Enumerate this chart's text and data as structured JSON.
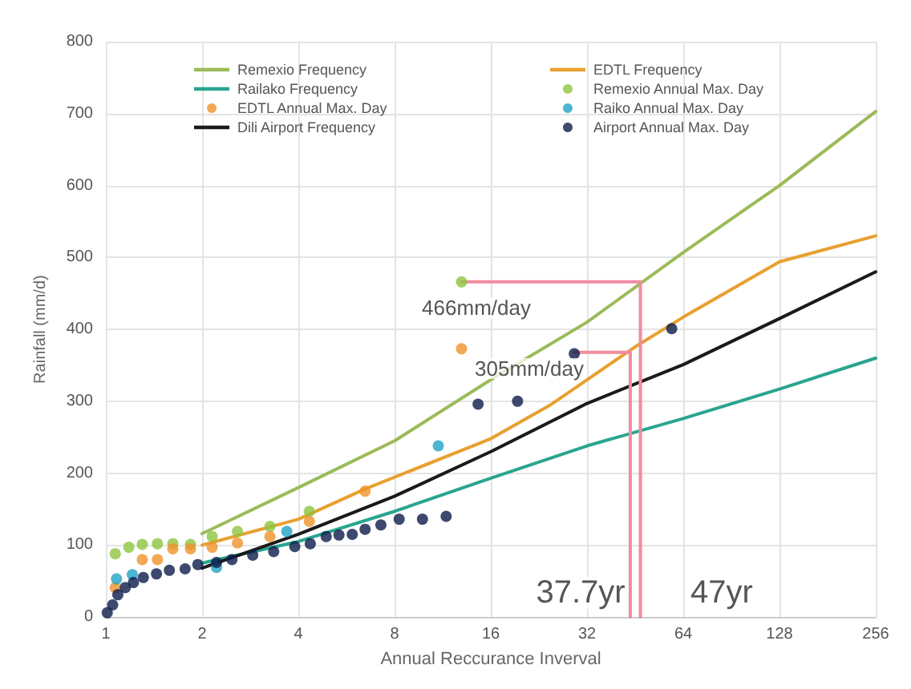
{
  "chart_data": {
    "type": "line",
    "xlabel": "Annual Reccurance Inverval",
    "ylabel": "Rainfall (mm/d)",
    "log": "x",
    "xlim": [
      1,
      256
    ],
    "xticks": [
      1,
      2,
      4,
      8,
      16,
      32,
      64,
      128,
      256
    ],
    "ylim": [
      0,
      800
    ],
    "yticks": [
      0,
      100,
      200,
      300,
      400,
      500,
      600,
      700,
      800
    ],
    "grid": true,
    "legend": "top",
    "series": [
      {
        "name": "Remexio Frequency",
        "marker": "none",
        "color": "#9bbb59",
        "x": [
          2,
          4,
          8,
          16,
          32,
          64,
          128,
          256
        ],
        "values": [
          116,
          180,
          245,
          330,
          410,
          507,
          600,
          703
        ]
      },
      {
        "name": "EDTL Frequency",
        "marker": "none",
        "color": "#e8a030",
        "x": [
          2,
          4,
          6.47,
          16,
          24.6,
          45,
          64,
          128,
          256
        ],
        "values": [
          100,
          136,
          178,
          248,
          295,
          375,
          417,
          494,
          530
        ]
      },
      {
        "name": "Railako Frequency",
        "marker": "none",
        "color": "#2aa58f",
        "x": [
          2,
          4,
          8,
          16,
          32,
          64,
          128,
          256
        ],
        "values": [
          75,
          105,
          147,
          193,
          238,
          276,
          317,
          360
        ]
      },
      {
        "name": "Remexio Annual Max. Day",
        "type": "scatter",
        "marker": "circle",
        "color": "#8cc63f",
        "x": [
          1.07,
          1.18,
          1.3,
          1.45,
          1.62,
          1.84,
          2.15,
          2.58,
          3.26,
          4.33,
          12.96
        ],
        "values": [
          88,
          97,
          101,
          102,
          102,
          101,
          112,
          119,
          126,
          147,
          466
        ]
      },
      {
        "name": "EDTL Annual Max. Day",
        "type": "scatter",
        "marker": "circle",
        "color": "#f0922b",
        "x": [
          1.07,
          1.3,
          1.45,
          1.62,
          1.84,
          2.15,
          2.58,
          3.26,
          4.33,
          6.47,
          12.96
        ],
        "values": [
          41,
          80,
          80,
          95,
          95,
          97,
          103,
          112,
          133,
          175,
          373
        ]
      },
      {
        "name": "Raiko Annual Max. Day",
        "type": "scatter",
        "marker": "circle",
        "color": "#1fa3c4",
        "x": [
          1.08,
          1.21,
          2.22,
          3.68,
          10.96
        ],
        "values": [
          53,
          59,
          69,
          119,
          238
        ]
      },
      {
        "name": "Dili Airport Frequency",
        "marker": "none",
        "color": "#1a1a1a",
        "x": [
          2,
          4,
          8,
          16,
          32,
          64,
          128,
          256
        ],
        "values": [
          68,
          115,
          168,
          230,
          297,
          351,
          415,
          480
        ]
      },
      {
        "name": "Airport Annual Max. Day",
        "type": "scatter",
        "marker": "circle",
        "color": "#0d1b4a",
        "x": [
          1.01,
          1.05,
          1.09,
          1.15,
          1.22,
          1.31,
          1.44,
          1.58,
          1.77,
          1.94,
          2.22,
          2.48,
          2.88,
          3.35,
          3.9,
          4.36,
          4.89,
          5.36,
          5.9,
          6.47,
          7.25,
          8.27,
          9.78,
          11.6,
          14.6,
          19.4,
          29.2,
          58.9
        ],
        "values": [
          6,
          17,
          31,
          41,
          48,
          55,
          60,
          65,
          67,
          73,
          76,
          80,
          86,
          91,
          98,
          102,
          112,
          114,
          115,
          122,
          128,
          136,
          136,
          140,
          296,
          300,
          366,
          401
        ]
      },
      {
        "marker": "none",
        "color": "#f08ca0",
        "x": [
          12.96,
          47,
          47
        ],
        "values": [
          466,
          466,
          0
        ]
      },
      {
        "marker": "none",
        "color": "#f08ca0",
        "x": [
          29.2,
          43.7,
          43.7
        ],
        "values": [
          368,
          368,
          0
        ]
      }
    ],
    "annotations": [
      "466mm/day",
      "305mm/day",
      "37.7yr",
      "47yr"
    ]
  }
}
